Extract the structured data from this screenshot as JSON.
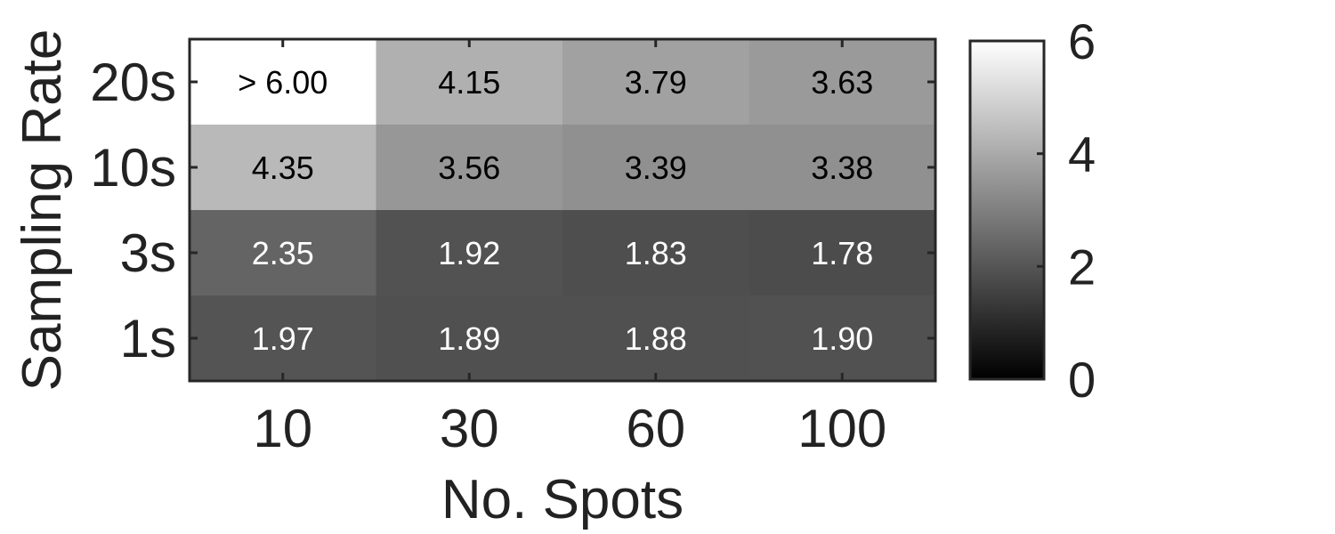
{
  "chart_data": {
    "type": "heatmap",
    "title": "",
    "xlabel": "No. Spots",
    "ylabel": "Sampling Rate",
    "x_categories": [
      "10",
      "30",
      "60",
      "100"
    ],
    "y_categories": [
      "20s",
      "10s",
      "3s",
      "1s"
    ],
    "values": [
      [
        6.0,
        4.15,
        3.79,
        3.63
      ],
      [
        4.35,
        3.56,
        3.39,
        3.38
      ],
      [
        2.35,
        1.92,
        1.83,
        1.78
      ],
      [
        1.97,
        1.89,
        1.88,
        1.9
      ]
    ],
    "cell_labels": [
      [
        "> 6.00",
        "4.15",
        "3.79",
        "3.63"
      ],
      [
        "4.35",
        "3.56",
        "3.39",
        "3.38"
      ],
      [
        "2.35",
        "1.92",
        "1.83",
        "1.78"
      ],
      [
        "1.97",
        "1.89",
        "1.88",
        "1.90"
      ]
    ],
    "colormap": "gray",
    "color_range": [
      0,
      6
    ],
    "colorbar_ticks": [
      "0",
      "2",
      "4",
      "6"
    ],
    "colorbar_placement": "right",
    "grid": false
  }
}
